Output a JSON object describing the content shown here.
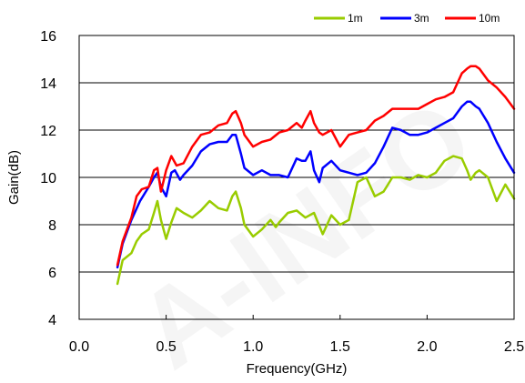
{
  "chart_data": {
    "type": "line",
    "title": "",
    "xlabel": "Frequency(GHz)",
    "ylabel": "Gain(dB)",
    "xlim": [
      0.0,
      2.5
    ],
    "ylim": [
      4,
      16
    ],
    "xticks": [
      0.0,
      0.5,
      1.0,
      1.5,
      2.0,
      2.5
    ],
    "xtick_labels": [
      "0.0",
      "0.5",
      "1.0",
      "1.5",
      "2.0",
      "2.5"
    ],
    "yticks": [
      4,
      6,
      8,
      10,
      12,
      14,
      16
    ],
    "ytick_labels": [
      "4",
      "6",
      "8",
      "10",
      "12",
      "14",
      "16"
    ],
    "grid": "horizontal",
    "legend_position": "top-right",
    "watermark": "A-INFO",
    "series": [
      {
        "name": "1m",
        "color": "#99cc00",
        "x": [
          0.22,
          0.25,
          0.3,
          0.33,
          0.36,
          0.4,
          0.43,
          0.45,
          0.47,
          0.5,
          0.53,
          0.56,
          0.6,
          0.65,
          0.7,
          0.75,
          0.8,
          0.85,
          0.88,
          0.9,
          0.93,
          0.95,
          1.0,
          1.05,
          1.1,
          1.13,
          1.15,
          1.2,
          1.25,
          1.3,
          1.35,
          1.4,
          1.45,
          1.5,
          1.55,
          1.6,
          1.65,
          1.7,
          1.75,
          1.8,
          1.85,
          1.9,
          1.95,
          2.0,
          2.05,
          2.1,
          2.15,
          2.2,
          2.23,
          2.25,
          2.28,
          2.3,
          2.35,
          2.4,
          2.45,
          2.5
        ],
        "values": [
          5.5,
          6.5,
          6.8,
          7.3,
          7.6,
          7.8,
          8.5,
          9.0,
          8.2,
          7.4,
          8.1,
          8.7,
          8.5,
          8.3,
          8.6,
          9.0,
          8.7,
          8.6,
          9.2,
          9.4,
          8.7,
          8.0,
          7.5,
          7.8,
          8.2,
          7.9,
          8.1,
          8.5,
          8.6,
          8.3,
          8.5,
          7.6,
          8.4,
          8.0,
          8.2,
          9.8,
          10.0,
          9.2,
          9.4,
          10.0,
          10.0,
          9.9,
          10.1,
          10.0,
          10.2,
          10.7,
          10.9,
          10.8,
          10.3,
          9.9,
          10.2,
          10.3,
          10.0,
          9.0,
          9.7,
          9.1
        ]
      },
      {
        "name": "3m",
        "color": "#0000ff",
        "x": [
          0.22,
          0.25,
          0.3,
          0.35,
          0.4,
          0.43,
          0.45,
          0.47,
          0.5,
          0.53,
          0.55,
          0.58,
          0.6,
          0.65,
          0.7,
          0.75,
          0.8,
          0.85,
          0.88,
          0.9,
          0.93,
          0.95,
          1.0,
          1.05,
          1.1,
          1.15,
          1.2,
          1.25,
          1.28,
          1.3,
          1.33,
          1.35,
          1.38,
          1.4,
          1.45,
          1.5,
          1.55,
          1.6,
          1.65,
          1.7,
          1.75,
          1.8,
          1.85,
          1.9,
          1.95,
          2.0,
          2.05,
          2.1,
          2.15,
          2.2,
          2.23,
          2.25,
          2.28,
          2.3,
          2.35,
          2.4,
          2.45,
          2.5
        ],
        "values": [
          6.2,
          7.2,
          8.2,
          9.0,
          9.6,
          10.0,
          10.2,
          9.6,
          9.2,
          10.2,
          10.3,
          9.9,
          10.1,
          10.5,
          11.1,
          11.4,
          11.5,
          11.5,
          11.8,
          11.8,
          11.0,
          10.4,
          10.1,
          10.3,
          10.1,
          10.1,
          10.0,
          10.8,
          10.7,
          10.7,
          11.1,
          10.3,
          9.8,
          10.4,
          10.7,
          10.3,
          10.2,
          10.1,
          10.2,
          10.6,
          11.3,
          12.1,
          12.0,
          11.8,
          11.8,
          11.9,
          12.1,
          12.3,
          12.5,
          13.0,
          13.2,
          13.2,
          13.0,
          12.9,
          12.3,
          11.5,
          10.8,
          10.2
        ]
      },
      {
        "name": "10m",
        "color": "#ff0000",
        "x": [
          0.22,
          0.25,
          0.3,
          0.33,
          0.36,
          0.4,
          0.43,
          0.45,
          0.47,
          0.5,
          0.53,
          0.56,
          0.6,
          0.65,
          0.7,
          0.75,
          0.8,
          0.85,
          0.88,
          0.9,
          0.93,
          0.95,
          1.0,
          1.05,
          1.1,
          1.15,
          1.2,
          1.25,
          1.28,
          1.3,
          1.33,
          1.35,
          1.38,
          1.4,
          1.45,
          1.5,
          1.55,
          1.6,
          1.65,
          1.7,
          1.75,
          1.8,
          1.85,
          1.9,
          1.95,
          2.0,
          2.05,
          2.1,
          2.15,
          2.2,
          2.23,
          2.25,
          2.28,
          2.3,
          2.35,
          2.4,
          2.45,
          2.5
        ],
        "values": [
          6.3,
          7.3,
          8.3,
          9.2,
          9.5,
          9.6,
          10.3,
          10.4,
          9.4,
          10.3,
          10.9,
          10.5,
          10.6,
          11.3,
          11.8,
          11.9,
          12.2,
          12.3,
          12.7,
          12.8,
          12.3,
          11.8,
          11.3,
          11.5,
          11.6,
          11.9,
          12.0,
          12.3,
          12.1,
          12.4,
          12.8,
          12.3,
          11.9,
          11.8,
          12.0,
          11.3,
          11.8,
          11.9,
          12.0,
          12.4,
          12.6,
          12.9,
          12.9,
          12.9,
          12.9,
          13.1,
          13.3,
          13.4,
          13.6,
          14.4,
          14.6,
          14.7,
          14.7,
          14.6,
          14.1,
          13.8,
          13.4,
          12.9
        ]
      }
    ]
  }
}
